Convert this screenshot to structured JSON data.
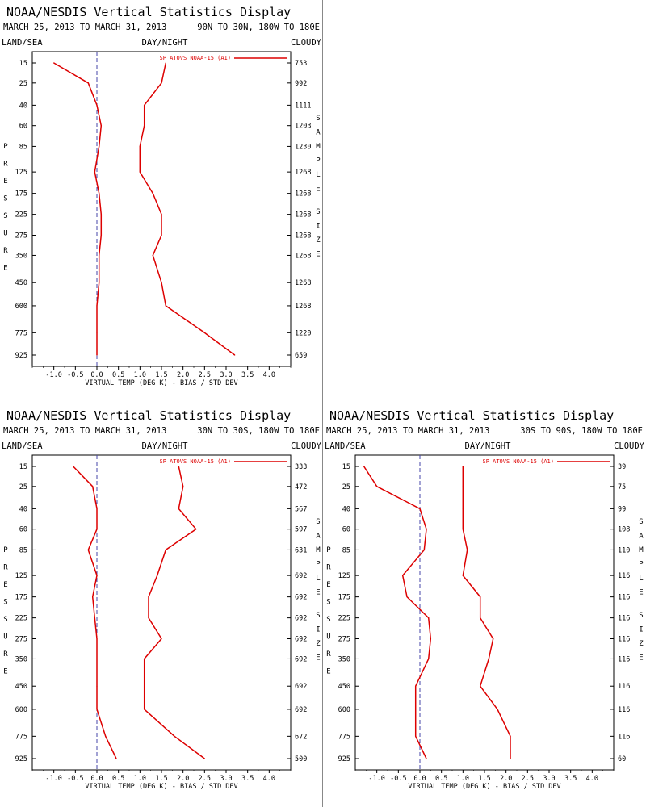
{
  "colors": {
    "series": "#dd0000",
    "axis": "#000000",
    "zero_line": "#4444aa"
  },
  "chart_data": [
    {
      "type": "line",
      "title": "NOAA/NESDIS Vertical Statistics Display",
      "date_range": "MARCH 25, 2013 TO MARCH 31, 2013",
      "region": "90N TO 30N, 180W TO 180E",
      "header_left": "LAND/SEA",
      "header_center": "DAY/NIGHT",
      "header_right": "CLOUDY",
      "xlabel": "VIRTUAL TEMP (DEG K) - BIAS / STD DEV",
      "ylabel": "PRESSURE",
      "right_label": "SAMPLE SIZE",
      "legend": "SP ATOVS NOAA-15 (A1)",
      "xlim": [
        -1.5,
        4.5
      ],
      "xticks": [
        "-1.0",
        "-0.5",
        "0.0",
        "0.5",
        "1.0",
        "1.5",
        "2.0",
        "2.5",
        "3.0",
        "3.5",
        "4.0"
      ],
      "pressure_levels": [
        "15",
        "25",
        "40",
        "60",
        "85",
        "125",
        "175",
        "225",
        "275",
        "350",
        "450",
        "600",
        "775",
        "925"
      ],
      "sample_size": [
        "753",
        "992",
        "1111",
        "1203",
        "1230",
        "1268",
        "1268",
        "1268",
        "1268",
        "1268",
        "1268",
        "1268",
        "1220",
        "659"
      ],
      "series": [
        {
          "kind": "bias",
          "values": [
            -1.0,
            -0.2,
            0.0,
            0.1,
            0.05,
            -0.05,
            0.05,
            0.1,
            0.1,
            0.05,
            0.05,
            0.0,
            0.0,
            0.0
          ]
        },
        {
          "kind": "stddev",
          "values": [
            1.6,
            1.5,
            1.1,
            1.1,
            1.0,
            1.0,
            1.3,
            1.5,
            1.5,
            1.3,
            1.5,
            1.6,
            2.5,
            3.2
          ]
        }
      ]
    },
    {
      "type": "line",
      "title": "NOAA/NESDIS Vertical Statistics Display",
      "date_range": "MARCH 25, 2013 TO MARCH 31, 2013",
      "region": "30N TO 30S, 180W TO 180E",
      "header_left": "LAND/SEA",
      "header_center": "DAY/NIGHT",
      "header_right": "CLOUDY",
      "xlabel": "VIRTUAL TEMP (DEG K) - BIAS / STD DEV",
      "ylabel": "PRESSURE",
      "right_label": "SAMPLE SIZE",
      "legend": "SP ATOVS NOAA-15 (A1)",
      "xlim": [
        -1.5,
        4.5
      ],
      "xticks": [
        "-1.0",
        "-0.5",
        "0.0",
        "0.5",
        "1.0",
        "1.5",
        "2.0",
        "2.5",
        "3.0",
        "3.5",
        "4.0"
      ],
      "pressure_levels": [
        "15",
        "25",
        "40",
        "60",
        "85",
        "125",
        "175",
        "225",
        "275",
        "350",
        "450",
        "600",
        "775",
        "925"
      ],
      "sample_size": [
        "333",
        "472",
        "567",
        "597",
        "631",
        "692",
        "692",
        "692",
        "692",
        "692",
        "692",
        "692",
        "672",
        "500"
      ],
      "series": [
        {
          "kind": "bias",
          "values": [
            -0.55,
            -0.1,
            0.0,
            0.0,
            -0.2,
            0.0,
            -0.1,
            -0.05,
            0.0,
            0.0,
            0.0,
            0.0,
            0.2,
            0.45
          ]
        },
        {
          "kind": "stddev",
          "values": [
            1.9,
            2.0,
            1.9,
            2.3,
            1.6,
            1.4,
            1.2,
            1.2,
            1.5,
            1.1,
            1.1,
            1.1,
            1.8,
            2.5
          ]
        }
      ]
    },
    {
      "type": "line",
      "title": "NOAA/NESDIS Vertical Statistics Display",
      "date_range": "MARCH 25, 2013 TO MARCH 31, 2013",
      "region": "30S TO 90S, 180W TO 180E",
      "header_left": "LAND/SEA",
      "header_center": "DAY/NIGHT",
      "header_right": "CLOUDY",
      "xlabel": "VIRTUAL TEMP (DEG K) - BIAS / STD DEV",
      "ylabel": "PRESSURE",
      "right_label": "SAMPLE SIZE",
      "legend": "SP ATOVS NOAA-15 (A1)",
      "xlim": [
        -1.5,
        4.5
      ],
      "xticks": [
        "-1.0",
        "-0.5",
        "0.0",
        "0.5",
        "1.0",
        "1.5",
        "2.0",
        "2.5",
        "3.0",
        "3.5",
        "4.0"
      ],
      "pressure_levels": [
        "15",
        "25",
        "40",
        "60",
        "85",
        "125",
        "175",
        "225",
        "275",
        "350",
        "450",
        "600",
        "775",
        "925"
      ],
      "sample_size": [
        "39",
        "75",
        "99",
        "108",
        "110",
        "116",
        "116",
        "116",
        "116",
        "116",
        "116",
        "116",
        "116",
        "60"
      ],
      "series": [
        {
          "kind": "bias",
          "values": [
            -1.3,
            -1.0,
            0.0,
            0.15,
            0.1,
            -0.4,
            -0.3,
            0.2,
            0.25,
            0.2,
            -0.1,
            -0.1,
            -0.1,
            0.15
          ]
        },
        {
          "kind": "stddev",
          "values": [
            1.0,
            1.0,
            1.0,
            1.0,
            1.1,
            1.0,
            1.4,
            1.4,
            1.7,
            1.6,
            1.4,
            1.8,
            2.1,
            2.1
          ]
        }
      ]
    }
  ]
}
